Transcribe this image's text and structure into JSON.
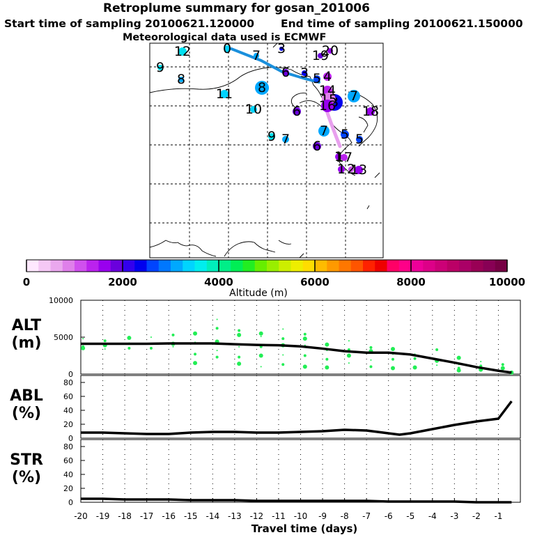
{
  "title": "Retroplume summary for gosan_201006",
  "start_label": "Start time of sampling 20100621.120000",
  "end_label": "End time of sampling 20100621.150000",
  "met_label": "Meteorological data used is ECMWF",
  "colorbar": {
    "label": "Altitude (m)",
    "ticks": [
      "0",
      "2000",
      "4000",
      "6000",
      "8000",
      "10000"
    ],
    "colors": [
      "#ffe8ff",
      "#f5c8f5",
      "#eaa8ee",
      "#df80ea",
      "#d050ee",
      "#bb22ee",
      "#9900ee",
      "#6a00dd",
      "#3300ee",
      "#0000ee",
      "#0044ff",
      "#0077ff",
      "#00a8ff",
      "#00d4ff",
      "#00eeee",
      "#00eebb",
      "#00ee88",
      "#00ee55",
      "#22ee22",
      "#66ee00",
      "#99ee00",
      "#ccee00",
      "#eeee00",
      "#ffdd00",
      "#ffbb00",
      "#ff9900",
      "#ff7700",
      "#ff5500",
      "#ff2200",
      "#ee0000",
      "#ff0066",
      "#ff0088",
      "#ee0099",
      "#dd0088",
      "#cc0077",
      "#bb0066",
      "#aa0066",
      "#990055",
      "#880055",
      "#770044"
    ]
  },
  "map": {
    "markers": [
      {
        "label": "0",
        "color": "#00d4ff"
      },
      {
        "label": "1",
        "color": "#9900ee"
      },
      {
        "label": "2",
        "color": "#cc55ee"
      },
      {
        "label": "3",
        "color": "#0000ee"
      },
      {
        "label": "4",
        "color": "#bb22ee"
      },
      {
        "label": "5",
        "color": "#0044ff"
      },
      {
        "label": "6",
        "color": "#6a00dd"
      },
      {
        "label": "7",
        "color": "#00a8ff"
      },
      {
        "label": "8",
        "color": "#00a8ff"
      },
      {
        "label": "9",
        "color": "#00e0f0"
      },
      {
        "label": "10",
        "color": "#00d4ff"
      },
      {
        "label": "11",
        "color": "#00d4ff"
      },
      {
        "label": "12",
        "color": "#00e0f0"
      },
      {
        "label": "13",
        "color": "#9900ee"
      },
      {
        "label": "14",
        "color": "#bb22ee"
      },
      {
        "label": "15",
        "color": "#df80ea"
      },
      {
        "label": "16",
        "color": "#9900ee"
      },
      {
        "label": "17",
        "color": "#bb22ee"
      },
      {
        "label": "18",
        "color": "#9900ee"
      },
      {
        "label": "19",
        "color": "#6a00dd"
      },
      {
        "label": "20",
        "color": "#9900ee"
      }
    ]
  },
  "chart_data": [
    {
      "type": "scatter",
      "panel": "ALT",
      "ylabel_line1": "ALT",
      "ylabel_line2": "(m)",
      "ylim": [
        0,
        10000
      ],
      "yticks": [
        "0",
        "5000",
        "10000"
      ],
      "xlim": [
        -20,
        0
      ],
      "dot_color": "#22ee55",
      "line_x": [
        -20,
        -19,
        -18,
        -17,
        -16,
        -15,
        -14,
        -13,
        -12,
        -11,
        -10,
        -9,
        -8,
        -7,
        -6,
        -5,
        -4,
        -3,
        -2,
        -1,
        -0.4
      ],
      "line_y": [
        4100,
        4100,
        4100,
        4100,
        4150,
        4150,
        4150,
        4050,
        3950,
        3900,
        3750,
        3450,
        3100,
        2900,
        2900,
        2650,
        2100,
        1550,
        950,
        450,
        200
      ],
      "dots": [
        {
          "x": -19.9,
          "y": [
            4800,
            3700,
            3500
          ]
        },
        {
          "x": -18.9,
          "y": [
            4500,
            3900,
            3400
          ]
        },
        {
          "x": -17.8,
          "y": [
            4900,
            4200,
            3500
          ]
        },
        {
          "x": -16.8,
          "y": [
            5000,
            3500
          ]
        },
        {
          "x": -15.8,
          "y": [
            5300,
            4100,
            3700
          ]
        },
        {
          "x": -14.8,
          "y": [
            5500,
            4300,
            2700,
            1500
          ]
        },
        {
          "x": -13.8,
          "y": [
            7400,
            6200,
            4400,
            3200,
            2300
          ]
        },
        {
          "x": -12.8,
          "y": [
            5900,
            5300,
            3700,
            2300,
            1400
          ]
        },
        {
          "x": -11.8,
          "y": [
            5500,
            5100,
            3700,
            2500,
            1000
          ]
        },
        {
          "x": -10.8,
          "y": [
            6100,
            4800,
            3900,
            2600,
            1300
          ]
        },
        {
          "x": -9.8,
          "y": [
            5400,
            4800,
            3900,
            2500,
            1000
          ]
        },
        {
          "x": -8.8,
          "y": [
            4000,
            3200,
            2000,
            900
          ]
        },
        {
          "x": -7.8,
          "y": [
            4500,
            3300,
            2500,
            1500
          ]
        },
        {
          "x": -6.8,
          "y": [
            3600,
            3100,
            1900,
            1000
          ]
        },
        {
          "x": -5.8,
          "y": [
            3400,
            2700,
            2000,
            800
          ]
        },
        {
          "x": -4.8,
          "y": [
            2700,
            2100,
            900
          ]
        },
        {
          "x": -3.8,
          "y": [
            3300,
            1800,
            1200
          ]
        },
        {
          "x": -2.8,
          "y": [
            2200,
            1300,
            800,
            500
          ]
        },
        {
          "x": -1.8,
          "y": [
            1700,
            1100,
            600
          ]
        },
        {
          "x": -0.8,
          "y": [
            1300,
            800
          ]
        },
        {
          "x": -0.4,
          "y": [
            200
          ]
        }
      ]
    },
    {
      "type": "line",
      "panel": "ABL",
      "ylabel_line1": "ABL",
      "ylabel_line2": "(%)",
      "ylim": [
        0,
        90
      ],
      "yticks": [
        "0",
        "20",
        "40",
        "60",
        "80"
      ],
      "xlim": [
        -20,
        0
      ],
      "x": [
        -20,
        -19,
        -18,
        -17,
        -16,
        -15,
        -14,
        -13,
        -12,
        -11,
        -10,
        -9,
        -8,
        -7,
        -6,
        -5.5,
        -5,
        -4,
        -3,
        -2,
        -1,
        -0.4
      ],
      "y": [
        8,
        8,
        7,
        6,
        6,
        8,
        9,
        9,
        8,
        8,
        9,
        10,
        12,
        11,
        7,
        5,
        7,
        13,
        19,
        24,
        28,
        53
      ]
    },
    {
      "type": "line",
      "panel": "STR",
      "ylabel_line1": "STR",
      "ylabel_line2": "(%)",
      "ylim": [
        0,
        90
      ],
      "yticks": [
        "0",
        "20",
        "40",
        "60",
        "80"
      ],
      "xlim": [
        -20,
        0
      ],
      "x": [
        -20,
        -19,
        -18,
        -17,
        -16,
        -15,
        -14,
        -13,
        -12,
        -11,
        -10,
        -9,
        -8,
        -7,
        -6,
        -5,
        -4,
        -3,
        -2,
        -1,
        -0.4
      ],
      "y": [
        5,
        5,
        4,
        4,
        4,
        3,
        3,
        3,
        2,
        2,
        2,
        2,
        2,
        2,
        1,
        1,
        1,
        1,
        0,
        0,
        0
      ],
      "xticks": [
        "-20",
        "-19",
        "-18",
        "-17",
        "-16",
        "-15",
        "-14",
        "-13",
        "-12",
        "-11",
        "-10",
        "-9",
        "-8",
        "-7",
        "-6",
        "-5",
        "-4",
        "-3",
        "-2",
        "-1"
      ],
      "xlabel": "Travel time (days)"
    }
  ]
}
